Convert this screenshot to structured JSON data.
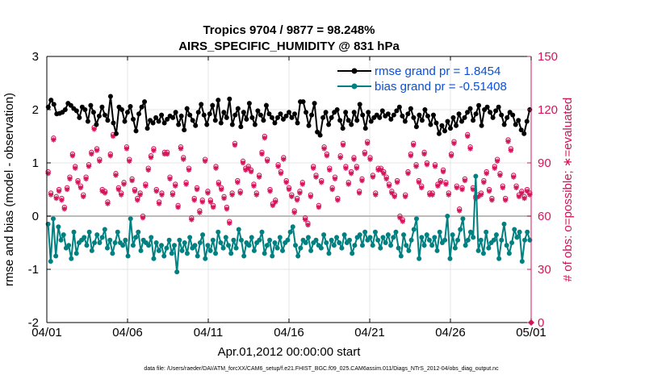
{
  "chart_data": {
    "type": "line",
    "title": "Tropics 9704 / 9877 = 98.248%",
    "subtitle": "AIRS_SPECIFIC_HUMIDITY @ 831 hPa",
    "xlabel": "Apr.01,2012 00:00:00 start",
    "ylabel_left": "rmse and bias (model - observation)",
    "ylabel_right": "# of obs: o=possible; ∗=evaluated",
    "x_range": [
      0,
      30
    ],
    "ylim_left": [
      -2,
      3
    ],
    "ylim_right": [
      0,
      150
    ],
    "x_tick_labels": [
      "04/01",
      "04/06",
      "04/11",
      "04/16",
      "04/21",
      "04/26",
      "05/01"
    ],
    "x_tick_positions": [
      0,
      5,
      10,
      15,
      20,
      25,
      30
    ],
    "y_tick_labels_left": [
      "-2",
      "-1",
      "0",
      "1",
      "2",
      "3"
    ],
    "y_tick_values_left": [
      -2,
      -1,
      0,
      1,
      2,
      3
    ],
    "y_tick_labels_right": [
      "0",
      "30",
      "60",
      "90",
      "120",
      "150"
    ],
    "y_tick_values_right": [
      0,
      30,
      60,
      90,
      120,
      150
    ],
    "legend": {
      "position": "top-right",
      "entries": [
        "rmse grand pr = 1.8454",
        "bias grand pr = -0.51408"
      ]
    },
    "colors": {
      "rmse": "#000000",
      "bias": "#008080",
      "obs": "#d4145a",
      "axis_right": "#d4145a",
      "legend_text": "#0a4fd6",
      "zero_line": "#bbbbbb",
      "grid": "#e6e6e6"
    },
    "series": [
      {
        "name": "rmse",
        "values": [
          2.05,
          2.18,
          2.1,
          1.92,
          1.93,
          1.95,
          2.0,
          2.12,
          2.08,
          2.02,
          1.98,
          1.85,
          2.05,
          2.0,
          1.78,
          2.08,
          1.95,
          1.72,
          1.88,
          2.05,
          1.9,
          1.8,
          2.25,
          1.75,
          1.55,
          2.05,
          2.0,
          1.78,
          1.95,
          2.06,
          1.82,
          1.6,
          1.92,
          2.05,
          2.15,
          1.65,
          1.8,
          1.75,
          1.85,
          1.78,
          1.9,
          1.75,
          1.82,
          1.88,
          1.85,
          1.95,
          1.72,
          1.88,
          1.62,
          2.02,
          1.9,
          1.8,
          1.7,
          1.95,
          2.1,
          1.9,
          1.72,
          1.92,
          2.08,
          1.8,
          2.18,
          1.75,
          1.95,
          1.85,
          2.2,
          1.72,
          1.9,
          2.02,
          1.68,
          1.95,
          1.82,
          2.12,
          1.85,
          1.72,
          1.98,
          1.9,
          1.8,
          2.08,
          1.92,
          1.85,
          1.75,
          1.85,
          1.92,
          1.82,
          1.88,
          1.95,
          1.85,
          1.92,
          1.75,
          2.15,
          2.15,
          1.95,
          1.7,
          1.9,
          2.12,
          1.58,
          1.52,
          1.85,
          1.95,
          1.72,
          1.85,
          1.95,
          2.0,
          1.8,
          1.65,
          1.95,
          1.8,
          1.72,
          1.95,
          1.8,
          2.1,
          1.9,
          1.65,
          1.95,
          1.78,
          1.85,
          1.9,
          1.85,
          1.98,
          1.88,
          1.92,
          1.82,
          1.9,
          1.98,
          2.05,
          1.88,
          1.78,
          1.92,
          2.02,
          1.85,
          1.68,
          1.9,
          1.8,
          2.0,
          1.88,
          1.72,
          1.9,
          1.75,
          1.55,
          1.7,
          1.6,
          1.78,
          1.65,
          1.85,
          1.7,
          1.92,
          1.78,
          1.85,
          1.95,
          2.02,
          1.8,
          1.92,
          2.08,
          1.7,
          2.0,
          2.05,
          1.95,
          1.85,
          1.98,
          2.05,
          1.9,
          1.72,
          1.85,
          1.95,
          1.9,
          1.72,
          1.8,
          1.62,
          1.55,
          1.78,
          2.0
        ]
      },
      {
        "name": "bias",
        "values": [
          -0.15,
          -0.85,
          -0.05,
          -0.75,
          -0.2,
          -0.45,
          -0.35,
          -0.6,
          -0.55,
          -0.8,
          -0.3,
          -0.7,
          -0.5,
          -0.45,
          -0.4,
          -0.55,
          -0.3,
          -0.65,
          -0.5,
          -0.35,
          -0.5,
          -0.4,
          -0.25,
          -0.6,
          -0.45,
          -0.7,
          -0.5,
          -0.3,
          -0.5,
          -0.55,
          -0.45,
          -0.75,
          -0.05,
          -0.55,
          -0.4,
          -0.3,
          -0.65,
          -0.45,
          -0.5,
          -0.55,
          -0.4,
          -0.8,
          -0.5,
          -0.65,
          -0.55,
          -0.75,
          -0.6,
          -0.45,
          -0.7,
          -0.55,
          -1.05,
          -0.45,
          -0.65,
          -0.5,
          -0.7,
          -0.4,
          -0.6,
          -0.55,
          -0.75,
          -0.5,
          -0.35,
          -0.8,
          -0.55,
          -0.65,
          -0.45,
          -0.7,
          -0.3,
          -0.5,
          -0.6,
          -0.4,
          -0.55,
          -0.7,
          -0.45,
          -0.6,
          -0.25,
          -0.45,
          -0.75,
          -0.5,
          -0.55,
          -0.4,
          -0.65,
          -0.5,
          -0.45,
          -0.3,
          -0.7,
          -0.55,
          -0.45,
          -0.75,
          -0.5,
          -0.6,
          -0.4,
          -0.65,
          -0.5,
          -0.45,
          -0.3,
          -0.2,
          -0.55,
          -0.75,
          -0.6,
          -0.45,
          -0.5,
          -0.4,
          -0.65,
          -0.5,
          -0.45,
          -0.55,
          -0.6,
          -0.35,
          -0.5,
          -0.7,
          -0.45,
          -0.55,
          -0.4,
          -0.5,
          -0.6,
          -0.35,
          -0.5,
          -0.45,
          -0.7,
          -0.55,
          -0.4,
          -0.35,
          -0.55,
          -0.3,
          -0.45,
          -0.4,
          -0.55,
          -0.3,
          -0.45,
          -0.6,
          -0.4,
          -0.5,
          -0.35,
          -0.55,
          -0.4,
          -0.3,
          -0.6,
          -0.75,
          -0.35,
          -0.55,
          -0.65,
          -0.45,
          -0.25,
          -0.05,
          -0.8,
          -0.4,
          -0.55,
          -0.35,
          -0.45,
          -0.55,
          -0.4,
          -0.65,
          -0.3,
          -0.5,
          -0.45,
          0.0,
          -0.8,
          -0.35,
          -0.6,
          -0.45,
          -0.25,
          -0.05,
          -0.55,
          -0.45,
          -0.3,
          -0.4,
          0.75,
          -0.65,
          -0.45,
          -0.7,
          -0.3,
          -0.6,
          -0.5,
          -0.45,
          -0.35,
          -0.8,
          -0.45,
          -0.15,
          -0.55,
          -0.7,
          -0.5,
          -0.25,
          -0.4,
          -0.3,
          -0.85,
          -0.45,
          -0.3,
          -0.45
        ]
      },
      {
        "name": "obs_possible",
        "values": [
          85,
          73,
          104,
          71,
          75,
          70,
          65,
          76,
          82,
          95,
          88,
          80,
          77,
          72,
          82,
          89,
          96,
          110,
          98,
          92,
          75,
          74,
          68,
          95,
          106,
          84,
          76,
          73,
          79,
          99,
          92,
          81,
          75,
          70,
          73,
          60,
          78,
          87,
          94,
          98,
          75,
          68,
          73,
          96,
          96,
          82,
          73,
          78,
          66,
          99,
          93,
          79,
          87,
          59,
          70,
          76,
          63,
          69,
          92,
          74,
          69,
          66,
          88,
          79,
          76,
          71,
          65,
          57,
          73,
          101,
          80,
          74,
          91,
          87,
          88,
          86,
          78,
          73,
          83,
          96,
          105,
          92,
          75,
          67,
          69,
          89,
          85,
          93,
          80,
          76,
          72,
          63,
          70,
          74,
          79,
          59,
          56,
          72,
          88,
          83,
          66,
          80,
          99,
          95,
          87,
          76,
          82,
          70,
          94,
          101,
          88,
          79,
          85,
          93,
          88,
          74,
          81,
          96,
          102,
          93,
          83,
          73,
          87,
          87,
          85,
          82,
          78,
          74,
          72,
          80,
          60,
          58,
          72,
          85,
          95,
          101,
          89,
          80,
          77,
          96,
          90,
          73,
          73,
          89,
          78,
          80,
          86,
          79,
          73,
          95,
          102,
          77,
          64,
          76,
          81,
          106,
          99,
          76,
          71,
          72,
          73,
          80,
          85,
          75,
          70,
          88,
          92,
          84,
          77,
          70,
          103,
          98,
          83,
          77,
          72,
          74,
          71,
          75,
          73
        ]
      },
      {
        "name": "obs_evaluated",
        "values": [
          84,
          72,
          103,
          70,
          74,
          69,
          64,
          75,
          81,
          94,
          87,
          79,
          76,
          71,
          81,
          88,
          95,
          109,
          97,
          91,
          74,
          73,
          67,
          94,
          105,
          83,
          75,
          72,
          78,
          98,
          91,
          80,
          74,
          69,
          72,
          59,
          77,
          86,
          93,
          97,
          74,
          67,
          72,
          95,
          95,
          81,
          72,
          77,
          65,
          98,
          92,
          78,
          86,
          58,
          69,
          75,
          62,
          68,
          91,
          73,
          68,
          65,
          87,
          78,
          75,
          70,
          64,
          56,
          72,
          100,
          79,
          73,
          90,
          86,
          87,
          85,
          77,
          72,
          82,
          95,
          104,
          91,
          74,
          66,
          68,
          88,
          84,
          92,
          79,
          75,
          71,
          62,
          69,
          73,
          78,
          58,
          55,
          71,
          87,
          82,
          65,
          79,
          98,
          94,
          86,
          75,
          81,
          69,
          93,
          100,
          87,
          78,
          84,
          92,
          87,
          73,
          80,
          95,
          101,
          92,
          82,
          72,
          86,
          86,
          84,
          81,
          77,
          73,
          71,
          79,
          59,
          57,
          71,
          84,
          94,
          100,
          88,
          79,
          76,
          95,
          89,
          72,
          72,
          88,
          77,
          79,
          85,
          78,
          72,
          94,
          101,
          76,
          63,
          75,
          80,
          105,
          98,
          75,
          70,
          71,
          72,
          79,
          84,
          74,
          69,
          87,
          91,
          83,
          76,
          69,
          102,
          97,
          82,
          76,
          71,
          73,
          70,
          74,
          72
        ]
      }
    ]
  },
  "footer": {
    "data_file": "data file: /Users/raeder/DAI/ATM_forcXX/CAM6_setup/f.e21.FHIST_BGC.f09_025.CAM6assim.011/Diags_NTrS_2012-04/obs_diag_output.nc"
  }
}
